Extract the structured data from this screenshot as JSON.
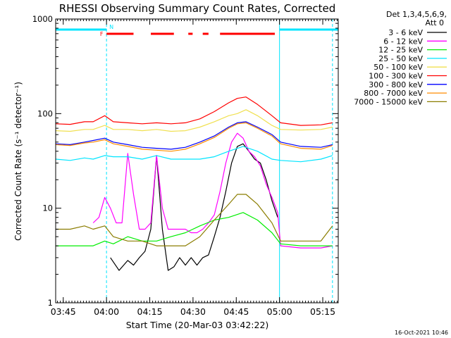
{
  "chart_data": {
    "type": "line",
    "title": "RHESSI Observing Summary Count Rates, Corrected",
    "xlabel": "Start Time (20-Mar-03 03:42:22)",
    "ylabel": "Corrected Count Rate (s⁻¹ detector⁻¹)",
    "yscale": "log",
    "ylim": [
      1,
      1000
    ],
    "xlim_minutes_from_0342": [
      0,
      98
    ],
    "x_tick_labels": [
      "03:45",
      "04:00",
      "04:15",
      "04:30",
      "04:45",
      "05:00",
      "05:15"
    ],
    "x_tick_minutes": [
      2.63,
      17.63,
      32.63,
      47.63,
      62.63,
      77.63,
      92.63
    ],
    "y_tick_labels": [
      "1",
      "10",
      "100",
      "1000"
    ],
    "y_tick_values": [
      1,
      10,
      100,
      1000
    ],
    "legend": {
      "header_line1": "Det 1,3,4,5,6,9,",
      "header_line2": "Att 0",
      "placement": "right"
    },
    "footer_date": "16-Oct-2021 10:46",
    "flags": {
      "N_label": "N",
      "F_label": "F",
      "night_segments_minutes": [
        [
          0,
          17.63
        ],
        [
          77.63,
          98
        ]
      ],
      "flare_segments_minutes": [
        [
          17.63,
          27
        ],
        [
          33,
          41
        ],
        [
          46,
          47.5
        ],
        [
          51,
          53
        ],
        [
          57,
          76
        ]
      ],
      "night_color": "#00e5ff",
      "flare_color": "#ff0000"
    },
    "vertical_markers_minutes": {
      "solid": [
        0,
        77.63
      ],
      "dashed": [
        17.63,
        96
      ]
    },
    "series": [
      {
        "name": "3 - 6 keV",
        "color": "#000000",
        "x": [
          0,
          8,
          13,
          17.6,
          19,
          22,
          25,
          27,
          29,
          31,
          33,
          35,
          37,
          39,
          41,
          43,
          45,
          47,
          49,
          51,
          53,
          55,
          57,
          59,
          61,
          63,
          65,
          67,
          69,
          71,
          73,
          75,
          77,
          78,
          85,
          92,
          96
        ],
        "y": [
          null,
          null,
          null,
          null,
          3.0,
          2.2,
          2.8,
          2.5,
          3.0,
          3.5,
          6.0,
          36,
          6.0,
          2.2,
          2.4,
          3.0,
          2.5,
          3.0,
          2.5,
          3.0,
          3.2,
          5.0,
          8.0,
          15,
          30,
          45,
          48,
          40,
          33,
          30,
          20,
          12,
          8,
          null,
          null,
          null,
          null
        ]
      },
      {
        "name": "6 - 12 keV",
        "color": "#ff00ff",
        "x": [
          13,
          15,
          17,
          19,
          21,
          23,
          25,
          27,
          29,
          31,
          33,
          35,
          37,
          39,
          41,
          43,
          45,
          47,
          49,
          51,
          53,
          55,
          57,
          59,
          61,
          63,
          65,
          67,
          69,
          71,
          73,
          75,
          77,
          78,
          85,
          92,
          96
        ],
        "y": [
          7.0,
          8.0,
          13,
          10,
          7.0,
          7.0,
          38,
          14,
          6.0,
          6.0,
          7.0,
          36,
          10,
          6.0,
          6.0,
          6.0,
          6.0,
          5.5,
          5.5,
          6.0,
          7.0,
          8.5,
          15,
          30,
          50,
          62,
          55,
          40,
          35,
          28,
          18,
          13,
          9,
          4.0,
          3.8,
          3.8,
          4.0
        ]
      },
      {
        "name": "12 - 25 keV",
        "color": "#00ee00",
        "x": [
          0,
          8,
          13,
          17,
          20,
          25,
          30,
          35,
          40,
          45,
          50,
          55,
          60,
          65,
          70,
          75,
          78,
          85,
          92,
          96
        ],
        "y": [
          4.0,
          4.0,
          4.0,
          4.5,
          4.2,
          5.0,
          4.5,
          4.5,
          5.0,
          5.5,
          6.5,
          7.5,
          8.0,
          9.0,
          7.5,
          5.5,
          4.2,
          4.0,
          4.0,
          4.0
        ]
      },
      {
        "name": "25 - 50 keV",
        "color": "#00e5ff",
        "x": [
          0,
          5,
          10,
          13,
          17,
          20,
          25,
          30,
          35,
          40,
          45,
          50,
          55,
          60,
          65,
          70,
          75,
          78,
          85,
          92,
          96
        ],
        "y": [
          33,
          32,
          34,
          33,
          36,
          35,
          35,
          33,
          36,
          33,
          33,
          33,
          35,
          40,
          45,
          40,
          33,
          32,
          31,
          33,
          36
        ]
      },
      {
        "name": "50 - 100 keV",
        "color": "#f0e050",
        "x": [
          0,
          5,
          10,
          13,
          17,
          20,
          25,
          30,
          35,
          40,
          45,
          50,
          55,
          60,
          63,
          66,
          70,
          75,
          78,
          85,
          92,
          96
        ],
        "y": [
          66,
          65,
          68,
          68,
          75,
          68,
          68,
          66,
          68,
          65,
          66,
          72,
          82,
          95,
          100,
          110,
          95,
          75,
          68,
          67,
          68,
          72
        ]
      },
      {
        "name": "100 - 300 keV",
        "color": "#ff0000",
        "x": [
          0,
          5,
          10,
          13,
          17,
          20,
          25,
          30,
          35,
          40,
          45,
          50,
          55,
          60,
          63,
          66,
          70,
          75,
          78,
          85,
          92,
          96
        ],
        "y": [
          78,
          77,
          82,
          82,
          95,
          82,
          80,
          78,
          80,
          78,
          80,
          88,
          105,
          130,
          145,
          150,
          125,
          95,
          80,
          75,
          76,
          80
        ]
      },
      {
        "name": "300 - 800 keV",
        "color": "#0000ff",
        "x": [
          0,
          5,
          10,
          13,
          17,
          20,
          25,
          30,
          35,
          40,
          45,
          50,
          55,
          60,
          63,
          66,
          70,
          75,
          78,
          85,
          92,
          96
        ],
        "y": [
          48,
          47,
          50,
          52,
          55,
          50,
          47,
          44,
          43,
          42,
          44,
          50,
          58,
          72,
          80,
          82,
          72,
          60,
          50,
          45,
          44,
          47
        ]
      },
      {
        "name": "800 - 7000 keV",
        "color": "#ff8c00",
        "x": [
          0,
          5,
          10,
          13,
          17,
          20,
          25,
          30,
          35,
          40,
          45,
          50,
          55,
          60,
          63,
          66,
          70,
          75,
          78,
          85,
          92,
          96
        ],
        "y": [
          47,
          46,
          49,
          50,
          53,
          48,
          45,
          42,
          41,
          40,
          42,
          48,
          56,
          70,
          78,
          80,
          70,
          58,
          48,
          43,
          42,
          46
        ]
      },
      {
        "name": "7000 - 15000 keV",
        "color": "#8b7d00",
        "x": [
          0,
          5,
          10,
          13,
          17,
          20,
          25,
          30,
          35,
          40,
          45,
          50,
          55,
          60,
          63,
          66,
          70,
          75,
          78,
          85,
          92,
          96
        ],
        "y": [
          6.0,
          6.0,
          6.5,
          6.0,
          6.5,
          5.0,
          4.5,
          4.5,
          4.0,
          4.0,
          4.0,
          5.0,
          7.5,
          11,
          14,
          14,
          11,
          7.0,
          4.5,
          4.5,
          4.5,
          6.5
        ]
      }
    ]
  }
}
